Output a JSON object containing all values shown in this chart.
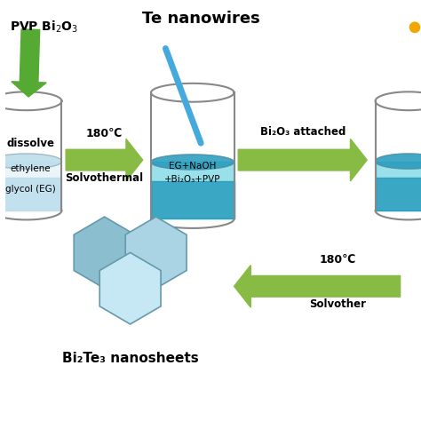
{
  "bg_color": "#ffffff",
  "beaker1_texts": [
    "dissolve",
    "ethylene",
    "glycol (EG)"
  ],
  "beaker2_text": "EG+NaOH\n+Bi₂O₃+PVP",
  "arrow1_top": "180℃",
  "arrow1_bot": "Solvothermal",
  "arrow2_top": "Bi₂O₃ attached",
  "arrow3_top": "180℃",
  "arrow3_bot": "Solvother",
  "header_pvp": "PVP Bi₂O₃",
  "header_te": "Te nanowires",
  "footer_label": "Bi₂Te₃ nanosheets",
  "beaker1_fill_light": "#ddeef5",
  "beaker1_fill_dark": "#b8dcea",
  "beaker2_fill_light": "#55ccdd",
  "beaker2_fill_dark": "#2299bb",
  "beaker3_fill_light": "#55ccdd",
  "beaker3_fill_dark": "#2299bb",
  "outline_color": "#888888",
  "arrow_color": "#88bb44",
  "nanowire_color": "#44aadd",
  "hex_colors": [
    "#8bbfcf",
    "#aad4e4",
    "#c5e8f4"
  ],
  "hex_outline": "#6699aa",
  "gold_dot_color": "#f0a800",
  "pvp_arrow_color": "#55aa33"
}
